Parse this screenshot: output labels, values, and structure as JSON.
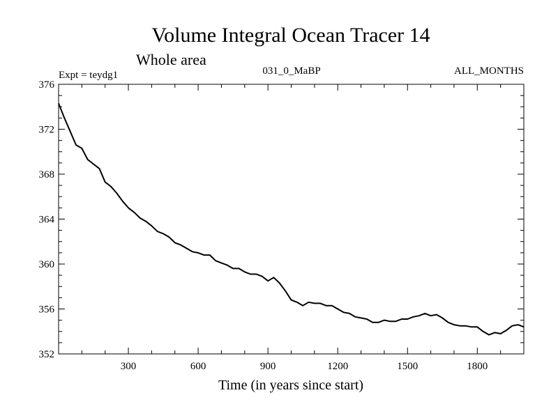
{
  "chart_data": {
    "type": "line",
    "title": "Volume Integral Ocean Tracer 14",
    "subtitle": "Whole area",
    "expt_label": "Expt = teydg1",
    "run_label": "031_0_MaBP",
    "months_label": "ALL_MONTHS",
    "xlabel": "Time (in years since start)",
    "ylabel": "",
    "xlim": [
      0,
      2000
    ],
    "ylim": [
      352,
      376
    ],
    "xticks": [
      300,
      600,
      900,
      1200,
      1500,
      1800
    ],
    "yticks": [
      352,
      356,
      360,
      364,
      368,
      372,
      376
    ],
    "series": [
      {
        "name": "Tracer 14",
        "x": [
          0,
          25,
          50,
          75,
          100,
          125,
          150,
          175,
          200,
          225,
          250,
          275,
          300,
          325,
          350,
          375,
          400,
          425,
          450,
          475,
          500,
          525,
          550,
          575,
          600,
          625,
          650,
          675,
          700,
          725,
          750,
          775,
          800,
          825,
          850,
          875,
          900,
          925,
          950,
          975,
          1000,
          1025,
          1050,
          1075,
          1100,
          1125,
          1150,
          1175,
          1200,
          1225,
          1250,
          1275,
          1300,
          1325,
          1350,
          1375,
          1400,
          1425,
          1450,
          1475,
          1500,
          1525,
          1550,
          1575,
          1600,
          1625,
          1650,
          1675,
          1700,
          1725,
          1750,
          1775,
          1800,
          1825,
          1850,
          1875,
          1900,
          1925,
          1950,
          1975,
          2000
        ],
        "y": [
          374.3,
          373.0,
          371.8,
          370.6,
          370.3,
          369.3,
          368.9,
          368.5,
          367.3,
          366.9,
          366.3,
          365.6,
          365.0,
          364.6,
          364.1,
          363.8,
          363.4,
          362.9,
          362.7,
          362.4,
          361.9,
          361.7,
          361.4,
          361.1,
          361.0,
          360.8,
          360.8,
          360.3,
          360.1,
          359.9,
          359.6,
          359.6,
          359.3,
          359.1,
          359.1,
          358.9,
          358.5,
          358.8,
          358.3,
          357.6,
          356.8,
          356.6,
          356.3,
          356.6,
          356.5,
          356.5,
          356.3,
          356.3,
          356.0,
          355.7,
          355.6,
          355.3,
          355.2,
          355.1,
          354.8,
          354.8,
          355.0,
          354.9,
          354.9,
          355.1,
          355.1,
          355.3,
          355.4,
          355.6,
          355.4,
          355.5,
          355.2,
          354.8,
          354.6,
          354.5,
          354.5,
          354.4,
          354.4,
          354.0,
          353.7,
          353.9,
          353.8,
          354.1,
          354.5,
          354.6,
          354.4
        ]
      }
    ]
  }
}
